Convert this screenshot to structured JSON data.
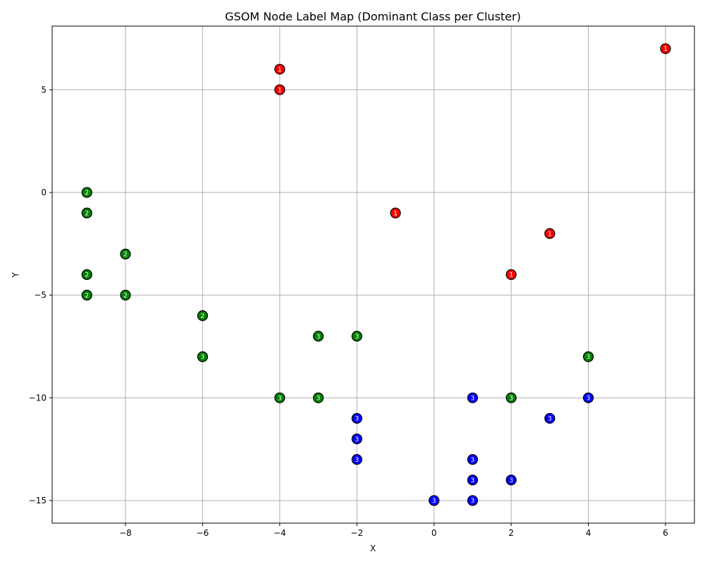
{
  "chart_data": {
    "type": "scatter",
    "title": "GSOM Node Label Map (Dominant Class per Cluster)",
    "xlabel": "X",
    "ylabel": "Y",
    "xlim": [
      -9.9,
      6.75
    ],
    "ylim": [
      -16.1,
      8.1
    ],
    "xticks": [
      -8,
      -6,
      -4,
      -2,
      0,
      2,
      4,
      6
    ],
    "yticks": [
      -15,
      -10,
      -5,
      0,
      5
    ],
    "xtick_labels": [
      "−8",
      "−6",
      "−4",
      "−2",
      "0",
      "2",
      "4",
      "6"
    ],
    "ytick_labels": [
      "−15",
      "−10",
      "−5",
      "0",
      "5"
    ],
    "grid": true,
    "class_colors": {
      "1": "#ff0000",
      "2": "#008000",
      "3": "#0000ff"
    },
    "points": [
      {
        "x": 6,
        "y": 7,
        "color": "1",
        "label": "1"
      },
      {
        "x": -4,
        "y": 6,
        "color": "1",
        "label": "1"
      },
      {
        "x": -4,
        "y": 5,
        "color": "1",
        "label": "1"
      },
      {
        "x": -1,
        "y": -1,
        "color": "1",
        "label": "1"
      },
      {
        "x": 3,
        "y": -2,
        "color": "1",
        "label": "1"
      },
      {
        "x": 2,
        "y": -4,
        "color": "1",
        "label": "1"
      },
      {
        "x": -9,
        "y": 0,
        "color": "2",
        "label": "2"
      },
      {
        "x": -9,
        "y": -1,
        "color": "2",
        "label": "2"
      },
      {
        "x": -8,
        "y": -3,
        "color": "2",
        "label": "2"
      },
      {
        "x": -9,
        "y": -4,
        "color": "2",
        "label": "2"
      },
      {
        "x": -9,
        "y": -5,
        "color": "2",
        "label": "2"
      },
      {
        "x": -8,
        "y": -5,
        "color": "2",
        "label": "2"
      },
      {
        "x": -6,
        "y": -6,
        "color": "2",
        "label": "2"
      },
      {
        "x": -3,
        "y": -7,
        "color": "2",
        "label": "3"
      },
      {
        "x": -2,
        "y": -7,
        "color": "2",
        "label": "3"
      },
      {
        "x": -6,
        "y": -8,
        "color": "2",
        "label": "3"
      },
      {
        "x": 4,
        "y": -8,
        "color": "2",
        "label": "3"
      },
      {
        "x": -4,
        "y": -10,
        "color": "2",
        "label": "3"
      },
      {
        "x": -3,
        "y": -10,
        "color": "2",
        "label": "3"
      },
      {
        "x": 2,
        "y": -10,
        "color": "2",
        "label": "3"
      },
      {
        "x": 1,
        "y": -10,
        "color": "3",
        "label": "3"
      },
      {
        "x": 4,
        "y": -10,
        "color": "3",
        "label": "3"
      },
      {
        "x": -2,
        "y": -11,
        "color": "3",
        "label": "3"
      },
      {
        "x": 3,
        "y": -11,
        "color": "3",
        "label": "3"
      },
      {
        "x": -2,
        "y": -12,
        "color": "3",
        "label": "3"
      },
      {
        "x": -2,
        "y": -13,
        "color": "3",
        "label": "3"
      },
      {
        "x": 1,
        "y": -13,
        "color": "3",
        "label": "3"
      },
      {
        "x": 1,
        "y": -14,
        "color": "3",
        "label": "3"
      },
      {
        "x": 2,
        "y": -14,
        "color": "3",
        "label": "3"
      },
      {
        "x": 0,
        "y": -15,
        "color": "3",
        "label": "3"
      },
      {
        "x": 1,
        "y": -15,
        "color": "3",
        "label": "3"
      }
    ]
  }
}
